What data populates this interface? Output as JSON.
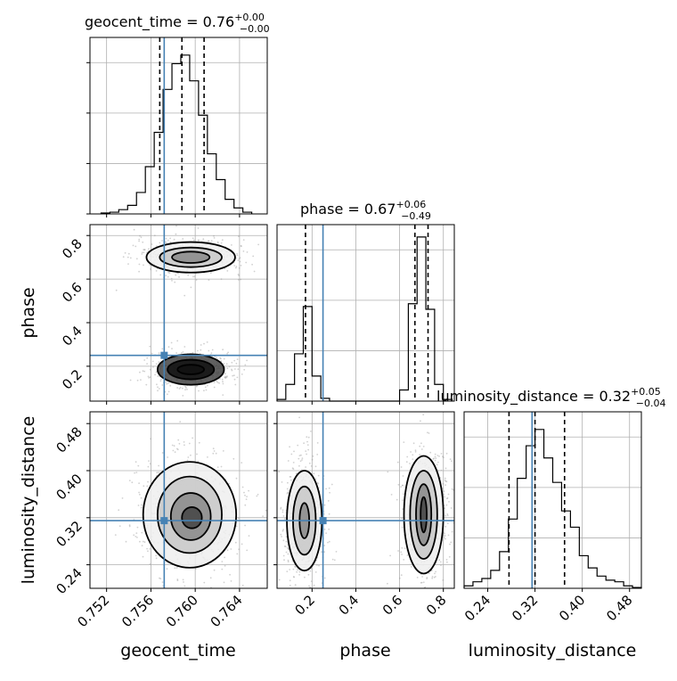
{
  "chart_data": {
    "type": "corner",
    "parameters": [
      "geocent_time",
      "phase",
      "luminosity_distance"
    ],
    "titles": {
      "geocent_time": {
        "name": "geocent_time",
        "median": "0.76",
        "plus": "+0.00",
        "minus": "−0.00"
      },
      "phase": {
        "name": "phase",
        "median": "0.67",
        "plus": "+0.06",
        "minus": "−0.49"
      },
      "luminosity_distance": {
        "name": "luminosity_distance",
        "median": "0.32",
        "plus": "+0.05",
        "minus": "−0.04"
      }
    },
    "ranges": {
      "geocent_time": [
        0.7505,
        0.7665
      ],
      "phase": [
        0.04,
        0.85
      ],
      "luminosity_distance": [
        0.2,
        0.5
      ]
    },
    "ticks": {
      "geocent_time": [
        "0.752",
        "0.756",
        "0.760",
        "0.764"
      ],
      "phase": [
        "0.2",
        "0.4",
        "0.6",
        "0.8"
      ],
      "luminosity_distance": [
        "0.24",
        "0.32",
        "0.40",
        "0.48"
      ]
    },
    "truths": {
      "geocent_time": 0.7572,
      "phase": 0.25,
      "luminosity_distance": 0.315
    },
    "quantiles": {
      "geocent_time": [
        0.7568,
        0.7588,
        0.7608
      ],
      "phase": [
        0.17,
        0.67,
        0.73
      ],
      "luminosity_distance": [
        0.276,
        0.32,
        0.37
      ]
    },
    "histograms": {
      "geocent_time": {
        "edges": [
          0.7515,
          0.7523,
          0.7531,
          0.7539,
          0.7547,
          0.7555,
          0.7563,
          0.7571,
          0.7579,
          0.7587,
          0.7595,
          0.7603,
          0.7611,
          0.7619,
          0.7627,
          0.7635,
          0.7643,
          0.7651
        ],
        "counts": [
          1,
          2,
          5,
          10,
          25,
          55,
          95,
          145,
          175,
          185,
          155,
          115,
          70,
          40,
          17,
          7,
          2
        ]
      },
      "phase": {
        "edges": [
          0.04,
          0.08,
          0.12,
          0.16,
          0.2,
          0.24,
          0.28,
          0.32,
          0.36,
          0.4,
          0.44,
          0.48,
          0.52,
          0.56,
          0.6,
          0.64,
          0.68,
          0.72,
          0.76,
          0.8,
          0.84
        ],
        "counts": [
          3,
          30,
          85,
          170,
          45,
          5,
          0,
          0,
          0,
          0,
          0,
          0,
          0,
          0,
          20,
          175,
          295,
          165,
          30,
          3
        ]
      },
      "luminosity_distance": {
        "edges": [
          0.2,
          0.215,
          0.23,
          0.245,
          0.26,
          0.275,
          0.29,
          0.305,
          0.32,
          0.335,
          0.35,
          0.365,
          0.38,
          0.395,
          0.41,
          0.425,
          0.44,
          0.455,
          0.47,
          0.485,
          0.5
        ],
        "counts": [
          3,
          8,
          12,
          22,
          45,
          85,
          135,
          175,
          195,
          160,
          130,
          95,
          75,
          40,
          25,
          15,
          10,
          8,
          3,
          1
        ]
      }
    },
    "contours": {
      "phase_vs_geocent_time": [
        {
          "cx": 0.7596,
          "cy": 0.7,
          "rx": 0.004,
          "ry": 0.07
        },
        {
          "cx": 0.7596,
          "cy": 0.7,
          "rx": 0.0028,
          "ry": 0.045
        },
        {
          "cx": 0.7596,
          "cy": 0.7,
          "rx": 0.0017,
          "ry": 0.026
        },
        {
          "cx": 0.7596,
          "cy": 0.185,
          "rx": 0.003,
          "ry": 0.07
        },
        {
          "cx": 0.7596,
          "cy": 0.185,
          "rx": 0.0021,
          "ry": 0.045
        },
        {
          "cx": 0.7596,
          "cy": 0.185,
          "rx": 0.0012,
          "ry": 0.022
        }
      ],
      "luminosity_distance_vs_geocent_time": [
        {
          "cx": 0.7595,
          "cy": 0.325,
          "rx": 0.0042,
          "ry": 0.09
        },
        {
          "cx": 0.7595,
          "cy": 0.325,
          "rx": 0.0029,
          "ry": 0.065
        },
        {
          "cx": 0.7596,
          "cy": 0.322,
          "rx": 0.0018,
          "ry": 0.04
        },
        {
          "cx": 0.7597,
          "cy": 0.32,
          "rx": 0.0009,
          "ry": 0.018
        }
      ],
      "luminosity_distance_vs_phase": [
        {
          "cx": 0.165,
          "cy": 0.315,
          "rx": 0.08,
          "ry": 0.085
        },
        {
          "cx": 0.165,
          "cy": 0.315,
          "rx": 0.052,
          "ry": 0.058
        },
        {
          "cx": 0.165,
          "cy": 0.315,
          "rx": 0.022,
          "ry": 0.03
        },
        {
          "cx": 0.71,
          "cy": 0.325,
          "rx": 0.09,
          "ry": 0.1
        },
        {
          "cx": 0.71,
          "cy": 0.325,
          "rx": 0.062,
          "ry": 0.075
        },
        {
          "cx": 0.71,
          "cy": 0.325,
          "rx": 0.035,
          "ry": 0.052
        },
        {
          "cx": 0.71,
          "cy": 0.325,
          "rx": 0.014,
          "ry": 0.03
        }
      ]
    },
    "grid": true,
    "colors": {
      "truth": "#4682b4",
      "hist": "#000000",
      "grid": "#b0b0b0"
    }
  }
}
